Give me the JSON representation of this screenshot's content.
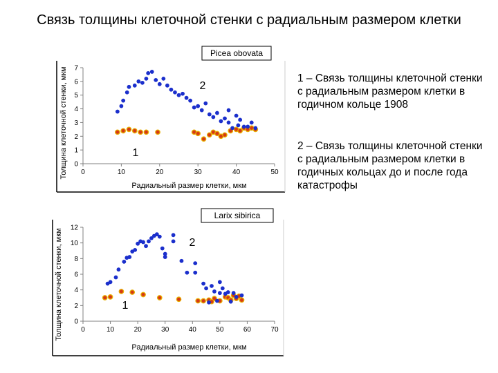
{
  "title": "Связь толщины клеточной стенки с радиальным размером клетки",
  "legend": {
    "item1": "1 – Связь толщины клеточной стенки с радиальным размером клетки в годичном кольце 1908",
    "item2": "2 – Связь толщины клеточной стенки с радиальным размером клетки в годичных кольцах до и после года катастрофы"
  },
  "colors": {
    "series_1": "#e8b000",
    "series_1_core": "#d63a14",
    "series_2": "#1b2fcc",
    "axis": "#808080",
    "frame": "#000000"
  },
  "chart_data": [
    {
      "type": "scatter",
      "species": "Picea obovata",
      "xlabel": "Радиальный размер клетки, мкм",
      "ylabel": "Толщина клеточной стенки, мкм",
      "xlim": [
        0,
        50
      ],
      "ylim": [
        0,
        7
      ],
      "xticks": [
        "0",
        "10",
        "20",
        "30",
        "40",
        "50"
      ],
      "yticks": [
        "0",
        "1",
        "2",
        "3",
        "4",
        "5",
        "6",
        "7"
      ],
      "grid": false,
      "series": [
        {
          "label": "1",
          "style": "orange",
          "points": [
            [
              9,
              2.3
            ],
            [
              10.5,
              2.4
            ],
            [
              12,
              2.5
            ],
            [
              13.5,
              2.4
            ],
            [
              15,
              2.3
            ],
            [
              16.5,
              2.3
            ],
            [
              19.5,
              2.3
            ],
            [
              29,
              2.3
            ],
            [
              30,
              2.2
            ],
            [
              31.5,
              1.8
            ],
            [
              33,
              2.1
            ],
            [
              34,
              2.3
            ],
            [
              35,
              2.2
            ],
            [
              36,
              2.0
            ],
            [
              37,
              2.1
            ],
            [
              38.5,
              2.4
            ],
            [
              40,
              2.5
            ],
            [
              41,
              2.4
            ],
            [
              42,
              2.6
            ],
            [
              43,
              2.5
            ],
            [
              44,
              2.6
            ],
            [
              45,
              2.5
            ]
          ]
        },
        {
          "label": "2",
          "style": "blue",
          "points": [
            [
              9,
              3.8
            ],
            [
              10,
              4.2
            ],
            [
              10.5,
              4.6
            ],
            [
              11.5,
              5.2
            ],
            [
              12,
              5.6
            ],
            [
              13.5,
              5.7
            ],
            [
              14.5,
              6.0
            ],
            [
              15.5,
              5.9
            ],
            [
              16.5,
              6.2
            ],
            [
              17,
              6.6
            ],
            [
              18,
              6.7
            ],
            [
              19,
              6.1
            ],
            [
              20,
              5.8
            ],
            [
              21,
              6.2
            ],
            [
              22,
              5.7
            ],
            [
              23,
              5.4
            ],
            [
              24,
              5.2
            ],
            [
              25,
              5.0
            ],
            [
              26,
              5.1
            ],
            [
              27,
              4.8
            ],
            [
              28,
              4.6
            ],
            [
              29,
              4.1
            ],
            [
              30,
              4.2
            ],
            [
              31,
              3.9
            ],
            [
              32,
              4.4
            ],
            [
              33,
              3.6
            ],
            [
              34,
              3.4
            ],
            [
              35,
              3.7
            ],
            [
              36,
              3.1
            ],
            [
              37,
              3.3
            ],
            [
              38,
              3.9
            ],
            [
              39,
              2.6
            ],
            [
              40,
              3.5
            ],
            [
              41,
              3.2
            ],
            [
              42,
              2.7
            ],
            [
              43,
              2.7
            ],
            [
              44,
              3.0
            ],
            [
              45,
              2.6
            ],
            [
              38,
              3.0
            ],
            [
              40.5,
              2.8
            ]
          ]
        }
      ]
    },
    {
      "type": "scatter",
      "species": "Larix sibirica",
      "xlabel": "Радиальный размер клетки, мкм",
      "ylabel": "Толщина клеточной стенки, мкм",
      "xlim": [
        0,
        70
      ],
      "ylim": [
        0,
        12
      ],
      "xticks": [
        "0",
        "10",
        "20",
        "30",
        "40",
        "50",
        "60",
        "70"
      ],
      "yticks": [
        "0",
        "2",
        "4",
        "6",
        "8",
        "10",
        "12"
      ],
      "grid": false,
      "series": [
        {
          "label": "1",
          "style": "orange",
          "points": [
            [
              8,
              3.0
            ],
            [
              10,
              3.1
            ],
            [
              14,
              3.8
            ],
            [
              18,
              3.7
            ],
            [
              22,
              3.4
            ],
            [
              28,
              3.0
            ],
            [
              35,
              2.8
            ],
            [
              42,
              2.6
            ],
            [
              44,
              2.6
            ],
            [
              46,
              2.7
            ],
            [
              48,
              2.9
            ],
            [
              50,
              2.6
            ],
            [
              52,
              3.1
            ],
            [
              53,
              3.0
            ],
            [
              54,
              2.7
            ],
            [
              55,
              3.3
            ],
            [
              56,
              2.9
            ],
            [
              57,
              3.2
            ],
            [
              58,
              2.7
            ],
            [
              47,
              2.5
            ]
          ]
        },
        {
          "label": "2",
          "style": "blue",
          "points": [
            [
              9,
              4.8
            ],
            [
              10,
              5.0
            ],
            [
              12,
              5.6
            ],
            [
              13,
              6.6
            ],
            [
              15,
              7.6
            ],
            [
              16,
              8.1
            ],
            [
              17,
              8.2
            ],
            [
              18,
              8.9
            ],
            [
              19,
              9.1
            ],
            [
              20,
              9.9
            ],
            [
              21,
              10.2
            ],
            [
              22,
              10.1
            ],
            [
              23,
              9.6
            ],
            [
              24,
              10.2
            ],
            [
              25,
              10.6
            ],
            [
              26,
              10.9
            ],
            [
              27,
              11.1
            ],
            [
              28,
              10.8
            ],
            [
              29,
              9.3
            ],
            [
              30,
              8.2
            ],
            [
              30,
              8.6
            ],
            [
              33,
              11.0
            ],
            [
              33,
              10.2
            ],
            [
              36,
              7.7
            ],
            [
              38,
              6.2
            ],
            [
              41,
              7.4
            ],
            [
              41,
              6.2
            ],
            [
              44,
              4.8
            ],
            [
              45,
              4.2
            ],
            [
              47,
              4.5
            ],
            [
              48,
              3.8
            ],
            [
              50,
              5.0
            ],
            [
              50,
              3.6
            ],
            [
              51,
              4.2
            ],
            [
              52,
              3.5
            ],
            [
              53,
              3.7
            ],
            [
              55,
              3.6
            ],
            [
              56,
              3.1
            ],
            [
              58,
              3.3
            ],
            [
              46,
              2.4
            ],
            [
              49,
              2.6
            ],
            [
              54,
              2.5
            ]
          ]
        }
      ]
    }
  ]
}
